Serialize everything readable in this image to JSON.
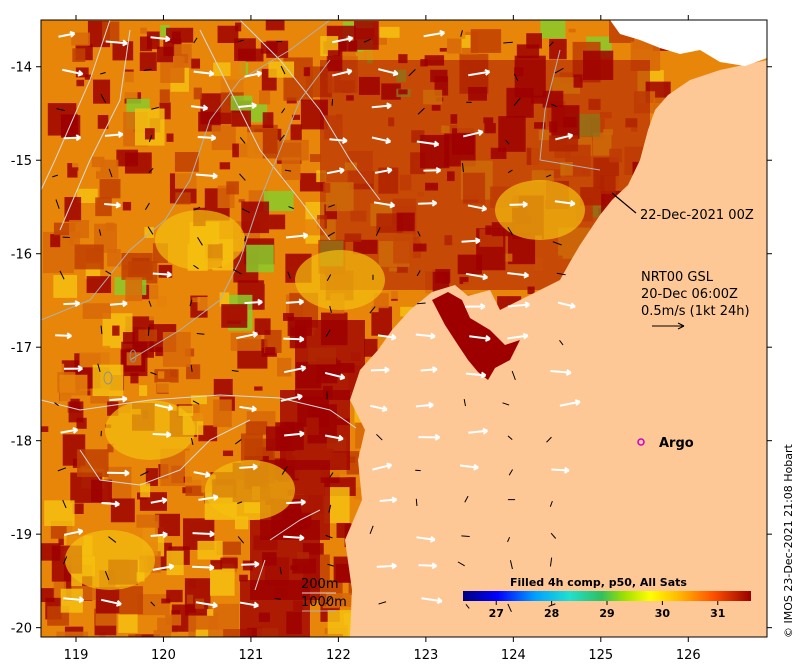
{
  "map": {
    "x_ticks": [
      "119",
      "120",
      "121",
      "122",
      "123",
      "124",
      "125",
      "126"
    ],
    "y_ticks": [
      "-14",
      "-15",
      "-16",
      "-17",
      "-18",
      "-19",
      "-20"
    ],
    "x_range_deg": [
      118.6,
      126.9
    ],
    "y_range_deg": [
      -13.5,
      -20.1
    ],
    "annotation_date": "22-Dec-2021 00Z",
    "current_source": "NRT00 GSL",
    "current_time": "20-Dec 06:00Z",
    "current_scale": "0.5m/s (1kt 24h)",
    "argo_label": "Argo",
    "isobath_200": "200m",
    "isobath_1000": "1000m",
    "colorbar_title": "Filled 4h comp, p50, All Sats",
    "colorbar_ticks": [
      "27",
      "28",
      "29",
      "30",
      "31"
    ],
    "colorbar_range": [
      26.4,
      31.6
    ],
    "copyright": "© IMOS 23-Dec-2021 21:08 Hobart",
    "colors": {
      "land": "#fec896",
      "hot": "#9e0000",
      "warm": "#e8860a",
      "mid": "#f5c010",
      "cool": "#8acb2b",
      "argo": "#cc00cc"
    }
  }
}
